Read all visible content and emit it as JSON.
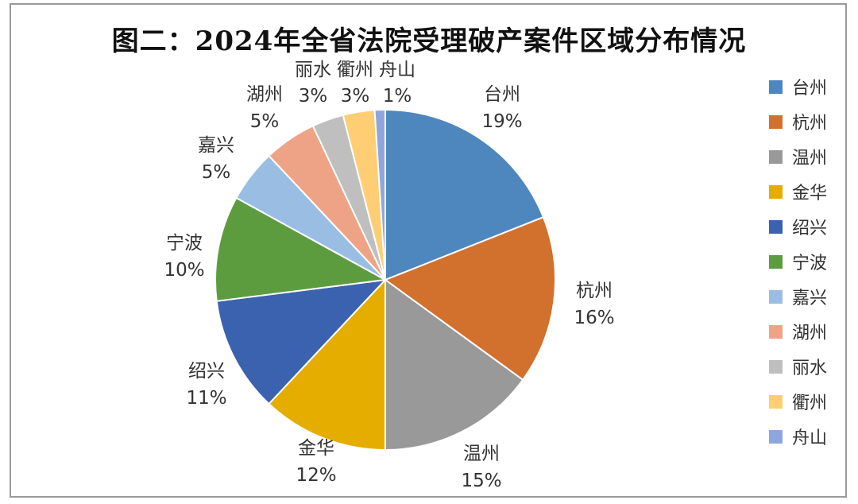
{
  "chart_data": {
    "type": "pie",
    "title": "图二：2024年全省法院受理破产案件区域分布情况",
    "legend_position": "right",
    "slices": [
      {
        "name": "台州",
        "label": "19%",
        "value": 19,
        "color": "#4e86be"
      },
      {
        "name": "杭州",
        "label": "16%",
        "value": 16,
        "color": "#d2702d"
      },
      {
        "name": "温州",
        "label": "15%",
        "value": 15,
        "color": "#999999"
      },
      {
        "name": "金华",
        "label": "12%",
        "value": 12,
        "color": "#e5ad00"
      },
      {
        "name": "绍兴",
        "label": "11%",
        "value": 11,
        "color": "#3b62ae"
      },
      {
        "name": "宁波",
        "label": "10%",
        "value": 10,
        "color": "#5d9c3e"
      },
      {
        "name": "嘉兴",
        "label": "5%",
        "value": 5,
        "color": "#9abde4"
      },
      {
        "name": "湖州",
        "label": "5%",
        "value": 5,
        "color": "#efa386"
      },
      {
        "name": "丽水",
        "label": "3%",
        "value": 3,
        "color": "#bfbfbf"
      },
      {
        "name": "衢州",
        "label": "3%",
        "value": 3,
        "color": "#ffcd73"
      },
      {
        "name": "舟山",
        "label": "1%",
        "value": 1,
        "color": "#8fa6dd"
      }
    ]
  }
}
